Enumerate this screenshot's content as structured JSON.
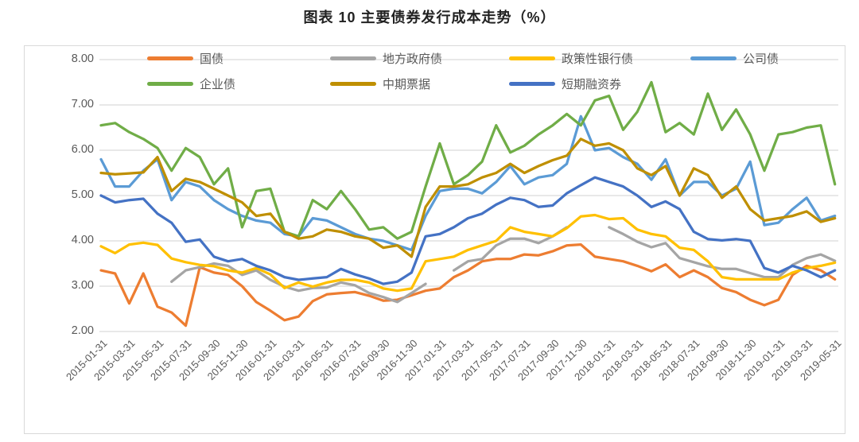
{
  "page": {
    "title": "图表 10 主要债券发行成本走势（%）"
  },
  "chart_data": {
    "type": "line",
    "title": "图表 10 主要债券发行成本走势（%）",
    "ylabel": "",
    "xlabel": "",
    "ylim": [
      2.0,
      8.0
    ],
    "grid": "horizontal",
    "legend_position": "top",
    "y_tick_labels": [
      "8.00",
      "7.00",
      "6.00",
      "5.00",
      "4.00",
      "3.00",
      "2.00"
    ],
    "x_tick_labels": [
      "2015-01-31",
      "2015-03-31",
      "2015-05-31",
      "2015-07-31",
      "2015-09-30",
      "2015-11-30",
      "2016-01-31",
      "2016-03-31",
      "2016-05-31",
      "2016-07-31",
      "2016-09-30",
      "2016-11-30",
      "2017-01-31",
      "2017-03-31",
      "2017-05-31",
      "2017-07-31",
      "2017-09-30",
      "2017-11-30",
      "2018-01-31",
      "2018-03-31",
      "2018-05-31",
      "2018-07-31",
      "2018-09-30",
      "2018-11-30",
      "2019-01-31",
      "2019-03-31",
      "2019-05-31"
    ],
    "n_points": 53,
    "points_per_tick": 2,
    "series": [
      {
        "name": "国债",
        "key": "treasury-bond",
        "color": "#ED7D31",
        "values": [
          3.35,
          3.28,
          2.62,
          3.28,
          2.55,
          2.42,
          2.13,
          3.42,
          3.3,
          3.25,
          3.0,
          2.65,
          2.46,
          2.25,
          2.33,
          2.67,
          2.82,
          2.85,
          2.87,
          2.79,
          2.68,
          2.7,
          2.8,
          2.9,
          2.95,
          3.2,
          3.35,
          3.55,
          3.6,
          3.6,
          3.7,
          3.68,
          3.77,
          3.9,
          3.92,
          3.65,
          3.6,
          3.55,
          3.45,
          3.33,
          3.48,
          3.2,
          3.35,
          3.2,
          2.96,
          2.87,
          2.7,
          2.58,
          2.7,
          3.25,
          3.45,
          3.35,
          3.15
        ]
      },
      {
        "name": "地方政府债",
        "key": "local-government-bond",
        "color": "#A5A5A5",
        "values": [
          null,
          null,
          null,
          null,
          null,
          3.1,
          3.35,
          3.42,
          3.5,
          3.45,
          3.25,
          3.35,
          3.14,
          2.99,
          2.9,
          2.96,
          2.97,
          3.08,
          3.02,
          2.85,
          2.76,
          2.65,
          2.85,
          3.05,
          null,
          3.35,
          3.55,
          3.6,
          3.9,
          4.05,
          4.05,
          3.95,
          4.1,
          4.3,
          null,
          null,
          4.3,
          4.15,
          3.98,
          3.86,
          3.95,
          3.62,
          3.53,
          3.44,
          3.38,
          3.38,
          3.29,
          3.2,
          3.2,
          3.47,
          3.62,
          3.7,
          3.56
        ]
      },
      {
        "name": "政策性银行债",
        "key": "policy-bank-bond",
        "color": "#FFC000",
        "values": [
          3.88,
          3.73,
          3.92,
          3.96,
          3.91,
          3.61,
          3.53,
          3.47,
          3.44,
          3.35,
          3.3,
          3.4,
          3.26,
          2.96,
          3.08,
          2.99,
          3.08,
          3.14,
          3.14,
          3.08,
          2.95,
          2.9,
          2.95,
          3.55,
          3.6,
          3.65,
          3.8,
          3.9,
          4.0,
          4.3,
          4.2,
          4.15,
          4.1,
          4.28,
          4.54,
          4.57,
          4.48,
          4.5,
          4.25,
          4.15,
          4.1,
          3.85,
          3.8,
          3.55,
          3.2,
          3.15,
          3.15,
          3.15,
          3.15,
          3.3,
          3.4,
          3.45,
          3.52
        ]
      },
      {
        "name": "公司债",
        "key": "corporate-bond",
        "color": "#5B9BD5",
        "values": [
          5.8,
          5.2,
          5.2,
          5.55,
          5.8,
          4.9,
          5.3,
          5.2,
          4.9,
          4.7,
          4.55,
          4.45,
          4.4,
          4.15,
          4.1,
          4.5,
          4.45,
          4.3,
          4.15,
          4.05,
          4.0,
          3.9,
          3.8,
          4.55,
          5.1,
          5.15,
          5.15,
          5.05,
          5.3,
          5.65,
          5.25,
          5.4,
          5.45,
          5.7,
          6.75,
          6.0,
          6.05,
          5.85,
          5.7,
          5.35,
          5.8,
          5.0,
          5.3,
          5.3,
          5.0,
          5.15,
          5.75,
          4.35,
          4.4,
          4.7,
          4.95,
          4.45,
          4.55
        ]
      },
      {
        "name": "企业债",
        "key": "enterprise-bond",
        "color": "#70AD47",
        "values": [
          6.55,
          6.6,
          6.4,
          6.25,
          6.05,
          5.55,
          6.05,
          5.85,
          5.25,
          5.6,
          4.3,
          5.1,
          5.15,
          4.2,
          4.1,
          4.9,
          4.7,
          5.1,
          4.7,
          4.25,
          4.3,
          4.05,
          4.2,
          5.2,
          6.15,
          5.25,
          5.45,
          5.75,
          6.55,
          5.95,
          6.1,
          6.35,
          6.55,
          6.8,
          6.55,
          7.1,
          7.2,
          6.45,
          6.85,
          7.5,
          6.4,
          6.6,
          6.35,
          7.25,
          6.45,
          6.9,
          6.35,
          5.55,
          6.35,
          6.4,
          6.5,
          6.55,
          5.25
        ]
      },
      {
        "name": "中期票据",
        "key": "medium-term-note",
        "color": "#BF8F00",
        "values": [
          5.5,
          5.47,
          5.49,
          5.51,
          5.85,
          5.1,
          5.37,
          5.3,
          5.15,
          5.0,
          4.85,
          4.55,
          4.6,
          4.2,
          4.05,
          4.1,
          4.25,
          4.2,
          4.1,
          4.05,
          3.85,
          3.9,
          3.65,
          4.75,
          5.2,
          5.2,
          5.25,
          5.4,
          5.5,
          5.7,
          5.5,
          5.65,
          5.78,
          5.88,
          6.25,
          6.1,
          6.15,
          6.0,
          5.6,
          5.45,
          5.65,
          5.0,
          5.6,
          5.45,
          4.95,
          5.2,
          4.7,
          4.45,
          4.5,
          4.55,
          4.65,
          4.42,
          4.5
        ]
      },
      {
        "name": "短期融资券",
        "key": "short-term-financing-bill",
        "color": "#4472C4",
        "values": [
          5.0,
          4.85,
          4.9,
          4.93,
          4.6,
          4.4,
          3.98,
          4.03,
          3.65,
          3.55,
          3.6,
          3.45,
          3.35,
          3.2,
          3.14,
          3.17,
          3.2,
          3.38,
          3.26,
          3.17,
          3.05,
          3.1,
          3.3,
          4.1,
          4.15,
          4.3,
          4.5,
          4.6,
          4.8,
          4.95,
          4.9,
          4.75,
          4.78,
          5.05,
          5.23,
          5.4,
          5.3,
          5.2,
          5.0,
          4.75,
          4.87,
          4.7,
          4.2,
          4.04,
          4.01,
          4.04,
          4.0,
          3.4,
          3.3,
          3.45,
          3.35,
          3.2,
          3.35
        ]
      }
    ],
    "legend_rows": [
      [
        0,
        1,
        2,
        3
      ],
      [
        4,
        5,
        6
      ]
    ]
  }
}
